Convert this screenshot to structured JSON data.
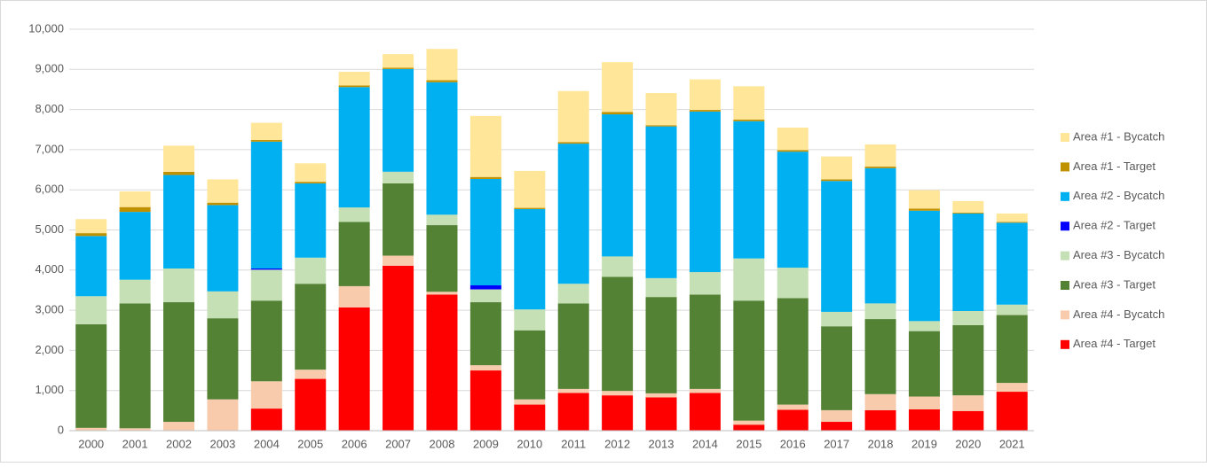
{
  "chart_data": {
    "type": "stacked_bar",
    "categories": [
      "2000",
      "2001",
      "2002",
      "2003",
      "2004",
      "2005",
      "2006",
      "2007",
      "2008",
      "2009",
      "2010",
      "2011",
      "2012",
      "2013",
      "2014",
      "2015",
      "2016",
      "2017",
      "2018",
      "2019",
      "2020",
      "2021"
    ],
    "series": [
      {
        "name": "Area #4 - Target",
        "color": "#ff0000",
        "values": [
          0,
          0,
          0,
          0,
          550,
          1290,
          3070,
          4110,
          3390,
          1500,
          650,
          940,
          880,
          830,
          940,
          150,
          520,
          220,
          510,
          530,
          490,
          970
        ]
      },
      {
        "name": "Area #4 - Bycatch",
        "color": "#f8cbad",
        "values": [
          70,
          60,
          220,
          780,
          680,
          230,
          530,
          250,
          70,
          130,
          130,
          100,
          110,
          100,
          100,
          100,
          130,
          290,
          400,
          320,
          390,
          220
        ]
      },
      {
        "name": "Area #3 - Target",
        "color": "#548235",
        "values": [
          2580,
          3110,
          2980,
          2020,
          2010,
          2140,
          1600,
          1800,
          1660,
          1570,
          1720,
          2130,
          2840,
          2400,
          2350,
          2990,
          2650,
          2090,
          1870,
          1630,
          1750,
          1690
        ]
      },
      {
        "name": "Area #3 - Bycatch",
        "color": "#c5e0b4",
        "values": [
          700,
          590,
          840,
          670,
          770,
          650,
          360,
          290,
          260,
          320,
          520,
          490,
          510,
          470,
          560,
          1050,
          760,
          360,
          390,
          250,
          350,
          260
        ]
      },
      {
        "name": "Area #2 - Target",
        "color": "#0000ff",
        "values": [
          0,
          0,
          0,
          0,
          30,
          0,
          0,
          0,
          0,
          100,
          0,
          0,
          0,
          0,
          0,
          0,
          0,
          0,
          0,
          0,
          0,
          0
        ]
      },
      {
        "name": "Area #2 - Bycatch",
        "color": "#00b0f0",
        "values": [
          1500,
          1690,
          2330,
          2150,
          3160,
          1850,
          3000,
          2560,
          3300,
          2650,
          2500,
          3490,
          3540,
          3780,
          4000,
          3420,
          2890,
          3260,
          3370,
          2750,
          2430,
          2040
        ]
      },
      {
        "name": "Area #1 - Target",
        "color": "#bf9000",
        "values": [
          70,
          120,
          80,
          60,
          40,
          40,
          40,
          30,
          50,
          50,
          30,
          40,
          60,
          30,
          40,
          40,
          40,
          40,
          40,
          50,
          20,
          20
        ]
      },
      {
        "name": "Area #1 - Bycatch",
        "color": "#ffe699",
        "values": [
          350,
          390,
          650,
          580,
          430,
          460,
          340,
          340,
          780,
          1520,
          920,
          1270,
          1240,
          800,
          760,
          830,
          560,
          570,
          550,
          460,
          290,
          210
        ]
      }
    ],
    "ylim": [
      0,
      10000
    ],
    "yticks": [
      0,
      {
        "value": 1000,
        "label": "1,000"
      },
      {
        "value": 2000,
        "label": "2,000"
      },
      {
        "value": 3000,
        "label": "3,000"
      },
      {
        "value": 4000,
        "label": "4,000"
      },
      {
        "value": 5000,
        "label": "5,000"
      },
      {
        "value": 6000,
        "label": "6,000"
      },
      {
        "value": 7000,
        "label": "7,000"
      },
      {
        "value": 8000,
        "label": "8,000"
      },
      {
        "value": 9000,
        "label": "9,000"
      },
      {
        "value": 10000,
        "label": "10,000"
      }
    ],
    "grid": true,
    "legend": "right"
  }
}
